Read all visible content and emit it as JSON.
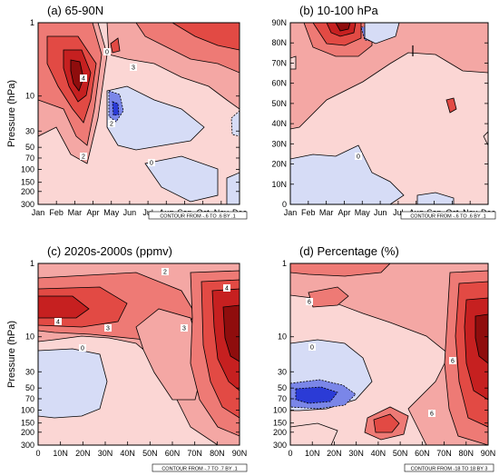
{
  "chart_data": [
    {
      "type": "heatmap",
      "title": "(a) 65-90N",
      "ylabel": "Pressure (hPa)",
      "xlabel": "",
      "x_ticks": [
        "Jan",
        "Feb",
        "Mar",
        "Apr",
        "May",
        "Jun",
        "Jul",
        "Aug",
        "Sep",
        "Oct",
        "Nov",
        "Dec"
      ],
      "y_ticks": [
        "1",
        "10",
        "30",
        "50",
        "70",
        "100",
        "150",
        "200",
        "300"
      ],
      "y_scale": "log",
      "contour_note": "CONTOUR FROM -.6 TO .6 BY .1",
      "contour_labels": [
        "4",
        "3",
        "2",
        "2",
        "0",
        "0"
      ],
      "contour_interval": 0.1,
      "contour_range": [
        -0.6,
        0.6
      ]
    },
    {
      "type": "heatmap",
      "title": "(b) 10-100 hPa",
      "ylabel": "",
      "xlabel": "",
      "x_ticks": [
        "Jan",
        "Feb",
        "Mar",
        "Apr",
        "May",
        "Jun",
        "Jul",
        "Aug",
        "Sep",
        "Oct",
        "Nov",
        "Dec"
      ],
      "y_ticks": [
        "0",
        "10N",
        "20N",
        "30N",
        "40N",
        "50N",
        "60N",
        "70N",
        "80N",
        "90N"
      ],
      "contour_note": "CONTOUR FROM -.6 TO .6 BY .1",
      "contour_labels": [
        "0"
      ],
      "contour_interval": 0.1,
      "contour_range": [
        -0.6,
        0.6
      ]
    },
    {
      "type": "heatmap",
      "title": "(c) 2020s-2000s (ppmv)",
      "ylabel": "Pressure (hPa)",
      "xlabel": "",
      "x_ticks": [
        "0",
        "10N",
        "20N",
        "30N",
        "40N",
        "50N",
        "60N",
        "70N",
        "80N",
        "90N"
      ],
      "y_ticks": [
        "1",
        "10",
        "30",
        "50",
        "70",
        "100",
        "150",
        "200",
        "300"
      ],
      "y_scale": "log",
      "contour_note": "CONTOUR FROM -.7 TO .7 BY .1",
      "contour_labels": [
        "2",
        "4",
        "3",
        "0",
        "3",
        "4"
      ],
      "contour_interval": 0.1,
      "contour_range": [
        -0.7,
        0.7
      ]
    },
    {
      "type": "heatmap",
      "title": "(d) Percentage (%)",
      "ylabel": "",
      "xlabel": "",
      "x_ticks": [
        "0",
        "10N",
        "20N",
        "30N",
        "40N",
        "50N",
        "60N",
        "70N",
        "80N",
        "90N"
      ],
      "y_ticks": [
        "1",
        "10",
        "30",
        "50",
        "70",
        "100",
        "150",
        "200",
        "300"
      ],
      "y_scale": "log",
      "contour_note": "CONTOUR FROM -18 TO 18 BY 3",
      "contour_labels": [
        "6",
        "0",
        "6",
        "6"
      ],
      "contour_interval": 3,
      "contour_range": [
        -18,
        18
      ]
    }
  ],
  "colors": {
    "neg_strong": "#2b3bd6",
    "neg_mid": "#7a86e8",
    "neg_light": "#d6dcf6",
    "pos_light": "#fbd6d4",
    "pos_1": "#f4a7a4",
    "pos_2": "#ee7a75",
    "pos_3": "#e24a44",
    "pos_4": "#c62020",
    "pos_5": "#8f0d0d"
  }
}
